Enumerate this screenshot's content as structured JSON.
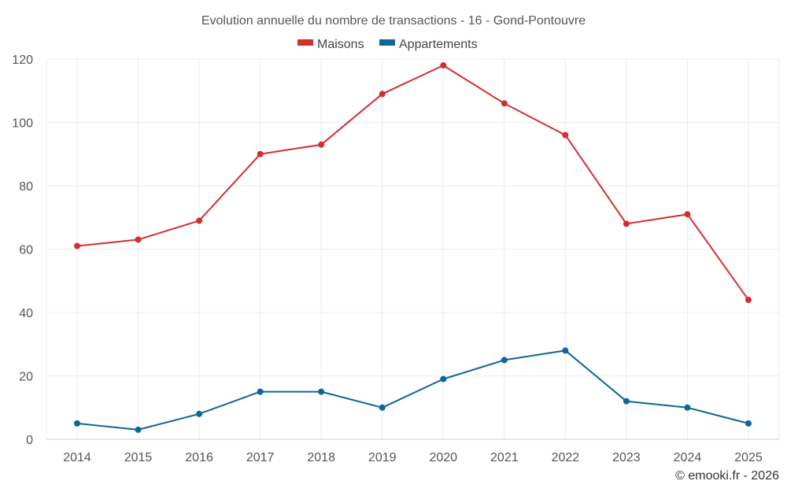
{
  "chart_data": {
    "type": "line",
    "title": "Evolution annuelle du nombre de transactions - 16 - Gond-Pontouvre",
    "categories": [
      "2014",
      "2015",
      "2016",
      "2017",
      "2018",
      "2019",
      "2020",
      "2021",
      "2022",
      "2023",
      "2024",
      "2025"
    ],
    "series": [
      {
        "name": "Maisons",
        "color": "#d32f2f",
        "values": [
          61,
          63,
          69,
          90,
          93,
          109,
          118,
          106,
          96,
          68,
          71,
          44
        ]
      },
      {
        "name": "Appartements",
        "color": "#0e6699",
        "values": [
          5,
          3,
          8,
          15,
          15,
          10,
          19,
          25,
          28,
          12,
          10,
          5
        ]
      }
    ],
    "ylim": [
      0,
      120
    ],
    "yticks": [
      0,
      20,
      40,
      60,
      80,
      100,
      120
    ],
    "legend_position": "top-center",
    "grid": true,
    "credit": "© emooki.fr - 2026"
  }
}
